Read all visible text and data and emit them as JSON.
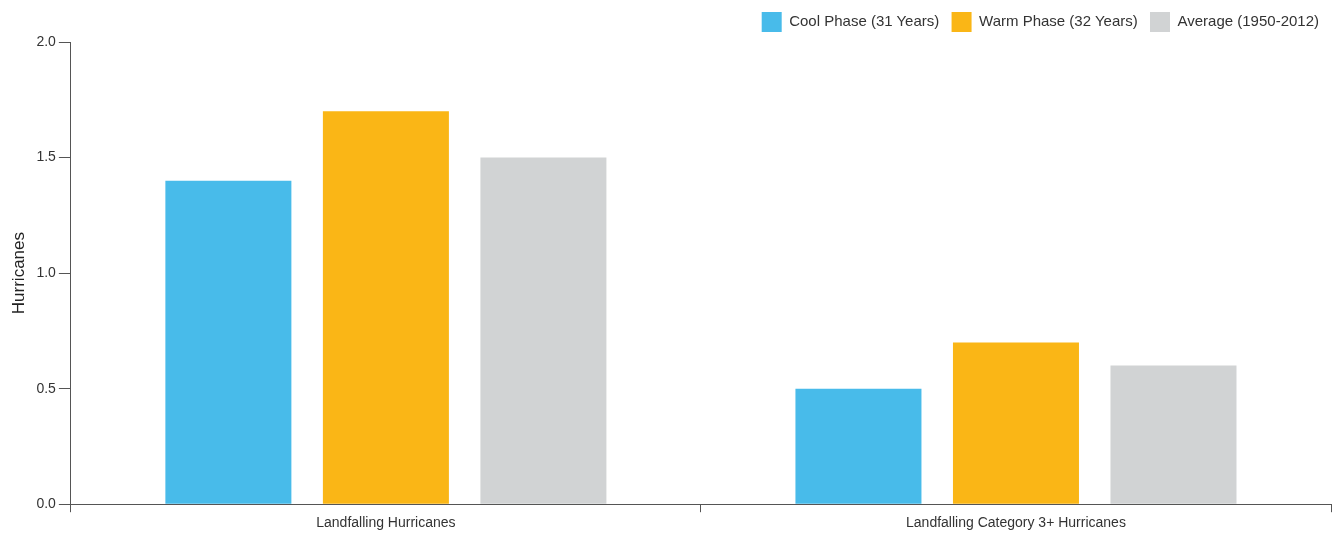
{
  "chart_data": {
    "type": "bar",
    "ylabel": "Hurricanes",
    "categories": [
      "Landfalling Hurricanes",
      "Landfalling Category 3+ Hurricanes"
    ],
    "series": [
      {
        "name": "Cool Phase (31 Years)",
        "color": "#48bbea",
        "values": [
          1.4,
          0.5
        ]
      },
      {
        "name": "Warm Phase (32 Years)",
        "color": "#fab616",
        "values": [
          1.7,
          0.7
        ]
      },
      {
        "name": "Average (1950-2012)",
        "color": "#d1d3d4",
        "values": [
          1.5,
          0.6
        ]
      }
    ],
    "ylim": [
      0,
      2
    ],
    "yticks": [
      {
        "value": 0,
        "label": "0.0"
      },
      {
        "value": 0.5,
        "label": "0.5"
      },
      {
        "value": 1,
        "label": "1.0"
      },
      {
        "value": 1.5,
        "label": "1.5"
      },
      {
        "value": 2,
        "label": "2.0"
      }
    ],
    "grid": false,
    "legend": "top right"
  }
}
